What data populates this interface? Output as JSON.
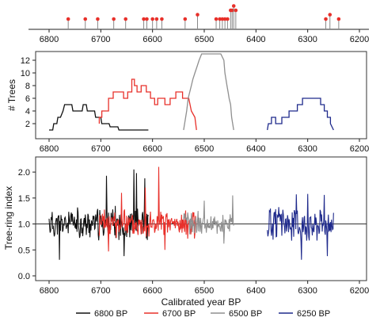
{
  "chart_data": [
    {
      "type": "scatter",
      "title": "",
      "xlabel": "",
      "ylabel": "",
      "xlim": [
        6800,
        6200
      ],
      "x_reversed": true,
      "xticks": [
        6800,
        6700,
        6600,
        6500,
        6400,
        6300,
        6200
      ],
      "marker_color": "#e8302a",
      "stem_color": "#888888",
      "points": [
        {
          "x": 6763,
          "stem": 1
        },
        {
          "x": 6730,
          "stem": 1
        },
        {
          "x": 6706,
          "stem": 1
        },
        {
          "x": 6675,
          "stem": 1
        },
        {
          "x": 6652,
          "stem": 1
        },
        {
          "x": 6617,
          "stem": 1
        },
        {
          "x": 6611,
          "stem": 1
        },
        {
          "x": 6600,
          "stem": 1
        },
        {
          "x": 6592,
          "stem": 1
        },
        {
          "x": 6582,
          "stem": 1
        },
        {
          "x": 6537,
          "stem": 1
        },
        {
          "x": 6513,
          "stem": 2
        },
        {
          "x": 6477,
          "stem": 1
        },
        {
          "x": 6470,
          "stem": 1
        },
        {
          "x": 6465,
          "stem": 1
        },
        {
          "x": 6460,
          "stem": 1
        },
        {
          "x": 6455,
          "stem": 1
        },
        {
          "x": 6449,
          "stem": 3
        },
        {
          "x": 6446,
          "stem": 3
        },
        {
          "x": 6443,
          "stem": 4
        },
        {
          "x": 6439,
          "stem": 3
        },
        {
          "x": 6265,
          "stem": 1
        },
        {
          "x": 6257,
          "stem": 2
        },
        {
          "x": 6240,
          "stem": 1
        }
      ]
    },
    {
      "type": "line",
      "title": "",
      "xlabel": "",
      "ylabel": "# Trees",
      "xlim": [
        6800,
        6200
      ],
      "x_reversed": true,
      "ylim": [
        0,
        13
      ],
      "xticks": [
        6800,
        6700,
        6600,
        6500,
        6400,
        6300,
        6200
      ],
      "yticks": [
        2,
        4,
        6,
        8,
        10,
        12
      ],
      "series": [
        {
          "name": "6800 BP",
          "color": "#111111",
          "x": [
            6800,
            6793,
            6791,
            6785,
            6783,
            6778,
            6773,
            6770,
            6756,
            6754,
            6736,
            6734,
            6728,
            6726,
            6712,
            6710,
            6700,
            6698,
            6684,
            6682,
            6667,
            6665,
            6640,
            6638,
            6608
          ],
          "y": [
            1,
            1,
            2,
            2,
            3,
            3,
            4,
            5,
            5,
            4,
            4,
            5,
            5,
            4,
            4,
            3,
            3,
            2,
            2,
            1.5,
            1.5,
            1,
            1,
            1,
            1
          ]
        },
        {
          "name": "6700 BP",
          "color": "#e8302a",
          "x": [
            6703,
            6703,
            6698,
            6698,
            6685,
            6685,
            6676,
            6676,
            6656,
            6656,
            6648,
            6648,
            6640,
            6640,
            6635,
            6635,
            6630,
            6630,
            6622,
            6622,
            6612,
            6612,
            6604,
            6604,
            6596,
            6596,
            6590,
            6590,
            6576,
            6576,
            6566,
            6566,
            6555,
            6555,
            6542,
            6542,
            6530,
            6525,
            6518,
            6515
          ],
          "y": [
            2,
            3,
            3,
            4,
            4,
            6,
            6,
            7,
            7,
            6,
            6,
            7,
            7,
            9,
            9,
            8,
            8,
            7,
            7,
            8,
            8,
            7,
            7,
            6,
            6,
            5,
            5,
            6,
            6,
            5,
            5,
            6,
            6,
            7,
            7,
            6,
            6,
            4,
            3,
            1
          ]
        },
        {
          "name": "6500 BP",
          "color": "#8f8f8f",
          "x": [
            6540,
            6538,
            6536,
            6534,
            6531,
            6528,
            6525,
            6522,
            6518,
            6514,
            6510,
            6505,
            6497,
            6488,
            6478,
            6468,
            6462,
            6460,
            6458,
            6456,
            6454,
            6452,
            6449,
            6447,
            6445,
            6443
          ],
          "y": [
            1,
            2,
            3,
            4,
            6,
            7,
            8,
            9,
            10,
            11,
            12,
            13,
            13,
            13,
            13,
            13,
            12,
            10,
            9,
            8,
            7,
            6,
            5,
            3,
            2,
            1
          ]
        },
        {
          "name": "6250 BP",
          "color": "#1f2a8c",
          "x": [
            6378,
            6376,
            6370,
            6370,
            6362,
            6362,
            6350,
            6350,
            6336,
            6336,
            6320,
            6320,
            6310,
            6310,
            6275,
            6275,
            6268,
            6268,
            6262,
            6262,
            6256,
            6256,
            6250
          ],
          "y": [
            1,
            2,
            2,
            3,
            3,
            2,
            2,
            3,
            3,
            4,
            4,
            5,
            5,
            6,
            6,
            5,
            5,
            4,
            4,
            3,
            3,
            2,
            1
          ]
        }
      ]
    },
    {
      "type": "line",
      "title": "",
      "xlabel": "Calibrated year BP",
      "ylabel": "Tree-ring index",
      "xlim": [
        6800,
        6200
      ],
      "x_reversed": true,
      "ylim": [
        0.0,
        2.2
      ],
      "xticks": [
        6800,
        6700,
        6600,
        6500,
        6400,
        6300,
        6200
      ],
      "yticks": [
        0.0,
        0.5,
        1.0,
        1.5,
        2.0
      ],
      "reference_line": 1.0,
      "legend": {
        "position": "bottom"
      },
      "series": [
        {
          "name": "6800 BP",
          "color": "#111111",
          "x_start": 6800,
          "x_end": 6608,
          "seed": 11,
          "amplitude": 0.36,
          "peaks": [
            [
              6689,
              1.93
            ],
            [
              6636,
              2.05
            ],
            [
              6631,
              1.98
            ],
            [
              6615,
              1.88
            ]
          ],
          "troughs": [
            [
              6780,
              0.31
            ],
            [
              6655,
              0.38
            ]
          ]
        },
        {
          "name": "6700 BP",
          "color": "#e8302a",
          "x_start": 6703,
          "x_end": 6515,
          "seed": 23,
          "amplitude": 0.32,
          "peaks": [
            [
              6588,
              2.1
            ],
            [
              6614,
              1.7
            ],
            [
              6660,
              1.6
            ]
          ],
          "troughs": [
            [
              6685,
              0.47
            ],
            [
              6576,
              0.5
            ]
          ]
        },
        {
          "name": "6500 BP",
          "color": "#8f8f8f",
          "x_start": 6540,
          "x_end": 6443,
          "seed": 37,
          "amplitude": 0.26,
          "peaks": [
            [
              6445,
              1.55
            ],
            [
              6500,
              1.45
            ]
          ],
          "troughs": [
            [
              6462,
              0.62
            ]
          ]
        },
        {
          "name": "6250 BP",
          "color": "#1f2a8c",
          "x_start": 6378,
          "x_end": 6250,
          "seed": 51,
          "amplitude": 0.38,
          "peaks": [
            [
              6322,
              1.57
            ],
            [
              6300,
              1.58
            ],
            [
              6268,
              1.56
            ]
          ],
          "troughs": [
            [
              6312,
              0.31
            ],
            [
              6262,
              0.38
            ]
          ]
        }
      ]
    }
  ]
}
